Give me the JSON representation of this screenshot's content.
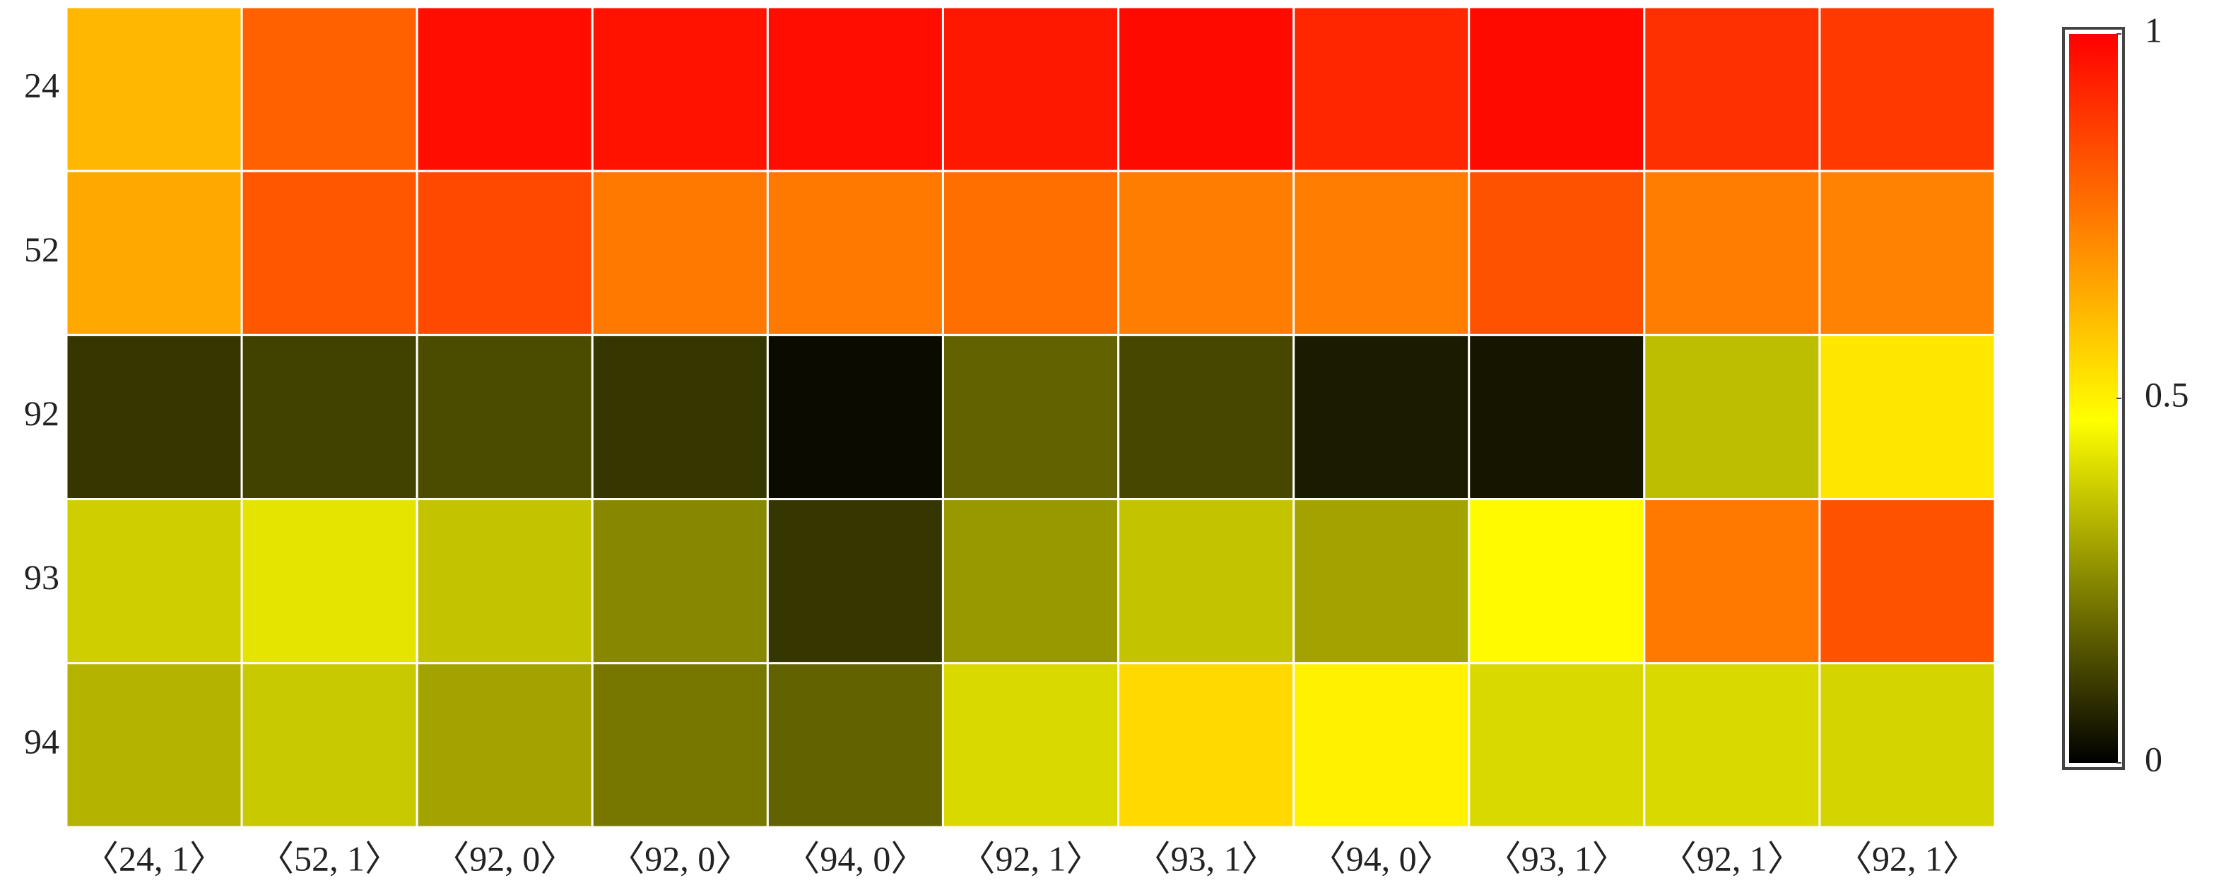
{
  "chart_data": {
    "type": "heatmap",
    "categories": [
      "〈24, 1〉",
      "〈52, 1〉",
      "〈92, 0〉",
      "〈92, 0〉",
      "〈94, 0〉",
      "〈92, 1〉",
      "〈93, 1〉",
      "〈94, 0〉",
      "〈93, 1〉",
      "〈92, 1〉",
      "〈92, 1〉"
    ],
    "rows": [
      "24",
      "52",
      "92",
      "93",
      "94"
    ],
    "values": [
      [
        0.62,
        0.8,
        0.97,
        0.96,
        0.97,
        0.95,
        0.98,
        0.92,
        0.98,
        0.9,
        0.88
      ],
      [
        0.65,
        0.82,
        0.85,
        0.75,
        0.75,
        0.77,
        0.74,
        0.74,
        0.83,
        0.74,
        0.73
      ],
      [
        0.1,
        0.12,
        0.14,
        0.1,
        0.02,
        0.18,
        0.13,
        0.05,
        0.04,
        0.35,
        0.52
      ],
      [
        0.38,
        0.42,
        0.36,
        0.25,
        0.1,
        0.28,
        0.36,
        0.3,
        0.48,
        0.75,
        0.83
      ],
      [
        0.33,
        0.37,
        0.3,
        0.22,
        0.18,
        0.4,
        0.55,
        0.5,
        0.4,
        0.4,
        0.39
      ]
    ],
    "colorscale": [
      [
        0,
        "#000000"
      ],
      [
        0.47,
        "#ffff00"
      ],
      [
        1,
        "#ff0000"
      ]
    ],
    "clim": [
      0,
      1
    ],
    "cticks": [
      0,
      0.5,
      1
    ]
  }
}
